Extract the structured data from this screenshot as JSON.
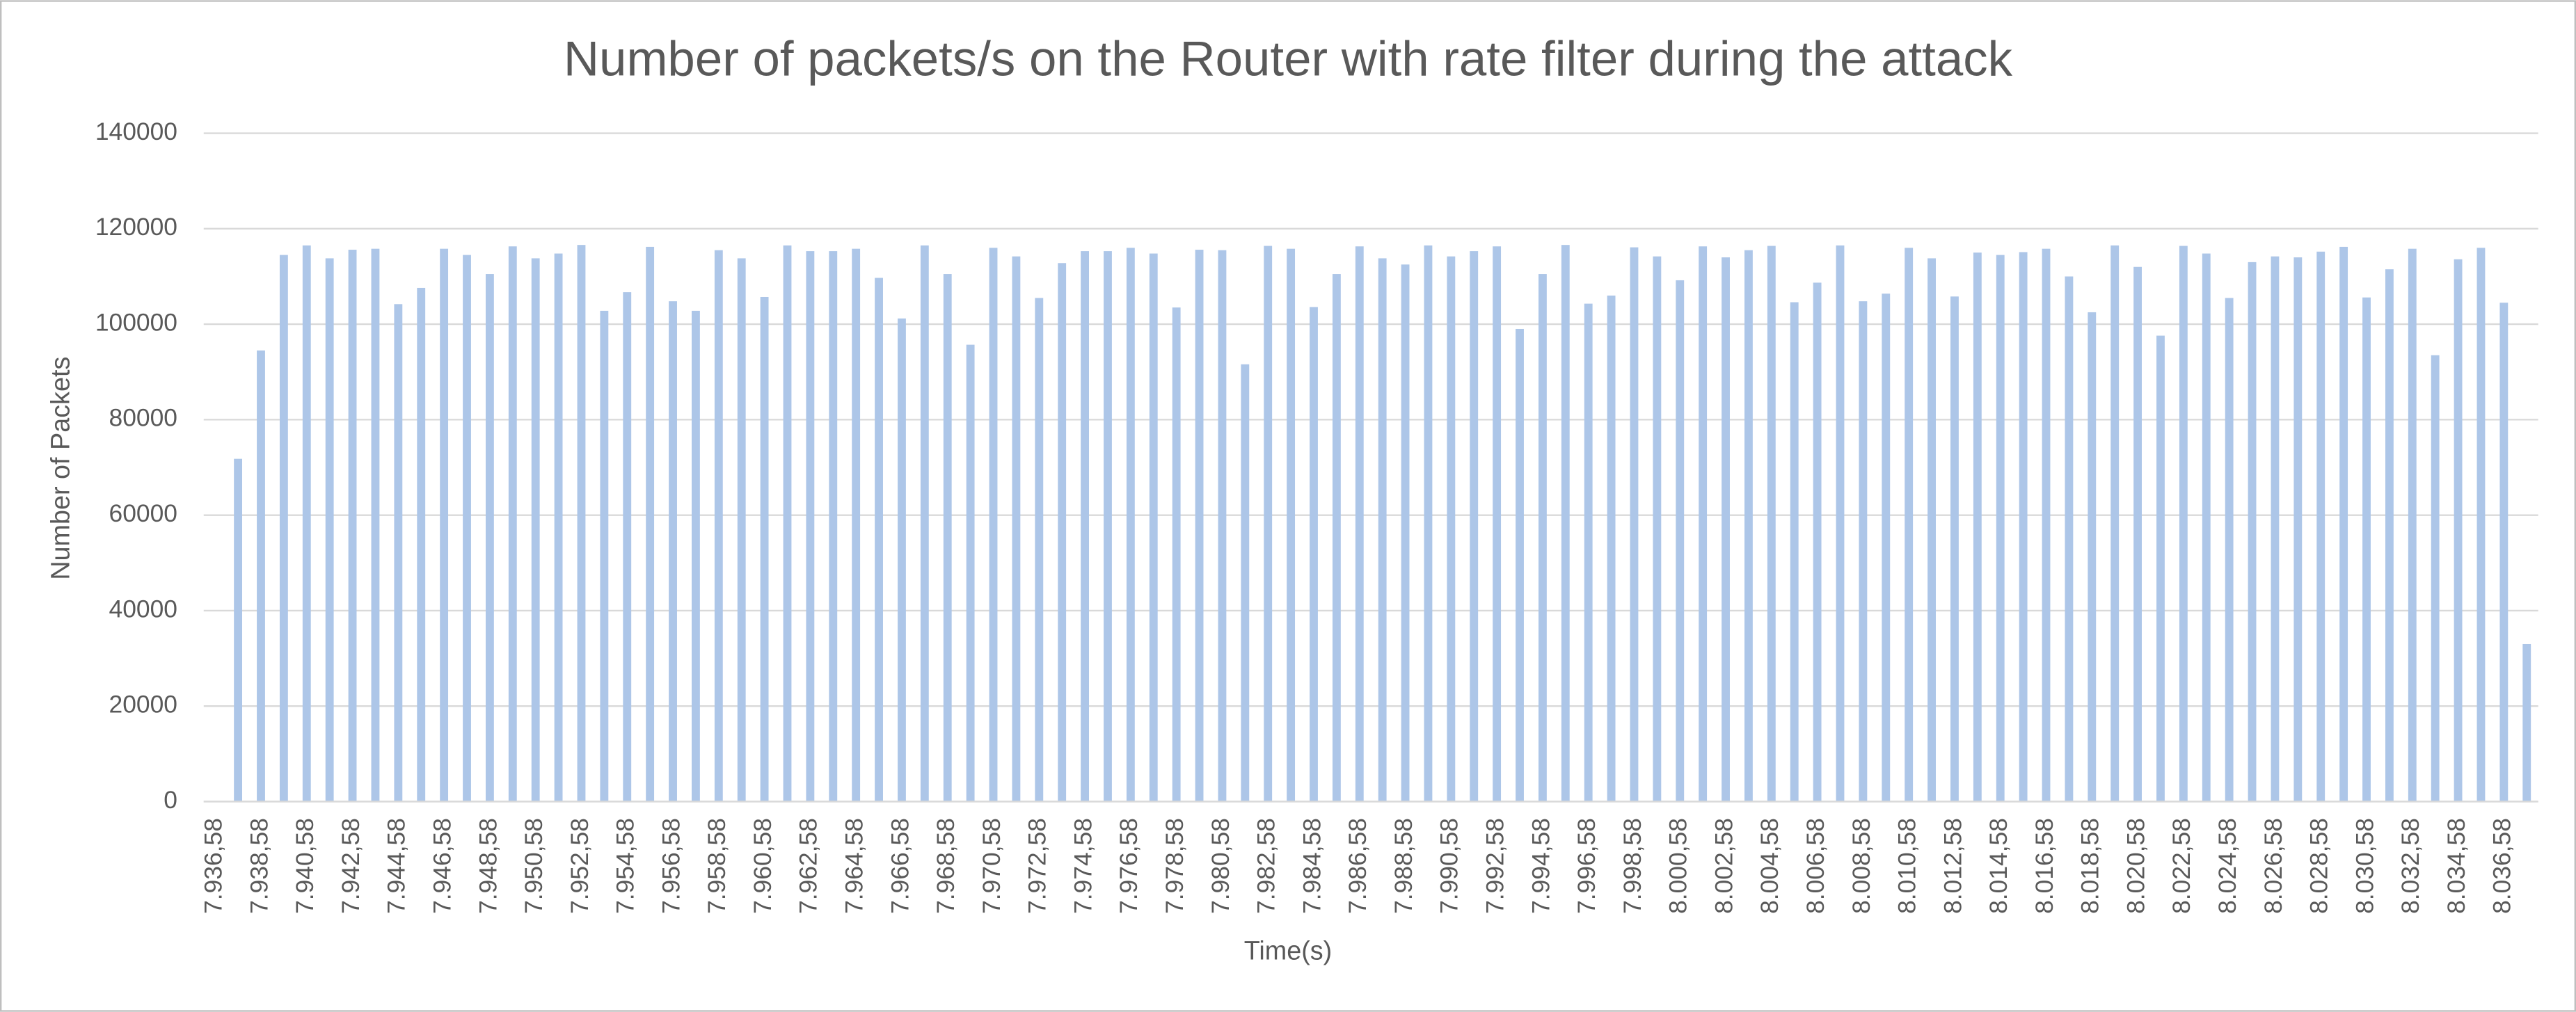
{
  "chart_data": {
    "type": "bar",
    "title": "Number of packets/s on the Router with rate filter during the attack",
    "x_label": "Time(s)",
    "y_label": "Number of Packets",
    "categories": [
      "7.936,58",
      null,
      "7.938,58",
      null,
      "7.940,58",
      null,
      "7.942,58",
      null,
      "7.944,58",
      null,
      "7.946,58",
      null,
      "7.948,58",
      null,
      "7.950,58",
      null,
      "7.952,58",
      null,
      "7.954,58",
      null,
      "7.956,58",
      null,
      "7.958,58",
      null,
      "7.960,58",
      null,
      "7.962,58",
      null,
      "7.964,58",
      null,
      "7.966,58",
      null,
      "7.968,58",
      null,
      "7.970,58",
      null,
      "7.972,58",
      null,
      "7.974,58",
      null,
      "7.976,58",
      null,
      "7.978,58",
      null,
      "7.980,58",
      null,
      "7.982,58",
      null,
      "7.984,58",
      null,
      "7.986,58",
      null,
      "7.988,58",
      null,
      "7.990,58",
      null,
      "7.992,58",
      null,
      "7.994,58",
      null,
      "7.996,58",
      null,
      "7.998,58",
      null,
      "8.000,58",
      null,
      "8.002,58",
      null,
      "8.004,58",
      null,
      "8.006,58",
      null,
      "8.008,58",
      null,
      "8.010,58",
      null,
      "8.012,58",
      null,
      "8.014,58",
      null,
      "8.016,58",
      null,
      "8.018,58",
      null,
      "8.020,58",
      null,
      "8.022,58",
      null,
      "8.024,58",
      null,
      "8.026,58",
      null,
      "8.028,58",
      null,
      "8.030,58",
      null,
      "8.032,58",
      null,
      "8.034,58",
      null,
      "8.036,58",
      null
    ],
    "values": [
      0,
      71800,
      94500,
      114500,
      116500,
      113800,
      115600,
      115800,
      104200,
      107600,
      115800,
      114500,
      110500,
      116300,
      113800,
      114800,
      116600,
      102800,
      106700,
      116200,
      104800,
      102800,
      115500,
      113800,
      105700,
      116500,
      115300,
      115300,
      115800,
      109700,
      101200,
      116500,
      110500,
      95700,
      116000,
      114200,
      105500,
      112800,
      115300,
      115300,
      116000,
      114800,
      103500,
      115600,
      115500,
      91600,
      116400,
      115800,
      103600,
      110500,
      116300,
      113800,
      112500,
      116500,
      114200,
      115300,
      116300,
      99000,
      110500,
      116600,
      104300,
      106000,
      116100,
      114200,
      109200,
      116300,
      114000,
      115500,
      116400,
      104600,
      108700,
      116500,
      104800,
      106400,
      116000,
      113800,
      105800,
      115000,
      114500,
      115100,
      115800,
      110000,
      102500,
      116500,
      112000,
      97600,
      116400,
      114800,
      105500,
      113000,
      114200,
      114000,
      115200,
      116200,
      105600,
      111500,
      115800,
      93500,
      113600,
      116000,
      104500,
      33000
    ],
    "color": "#adc6e8",
    "ylim": [
      0,
      140000
    ],
    "yticks": [
      0,
      20000,
      40000,
      60000,
      80000,
      100000,
      120000,
      140000
    ],
    "grid": true
  }
}
